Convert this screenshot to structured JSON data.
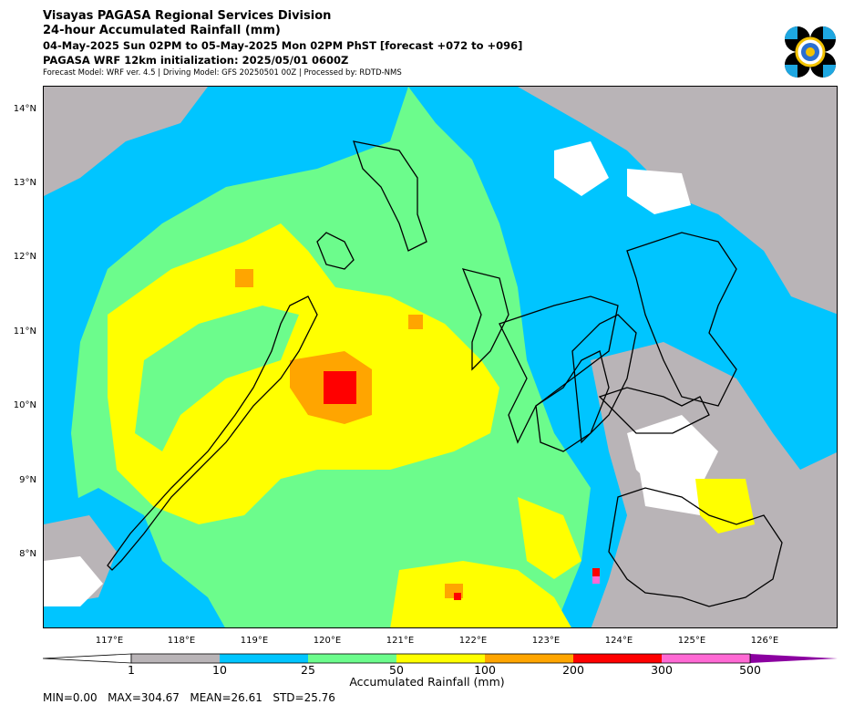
{
  "header": {
    "title": "Visayas PAGASA Regional Services Division",
    "subtitle": "24-hour Accumulated Rainfall (mm)",
    "period": "04-May-2025 Sun 02PM to 05-May-2025 Mon 02PM PhST [forecast +072 to +096]",
    "init": "PAGASA WRF 12km initialization: 2025/05/01 0600Z",
    "credits": "Forecast Model: WRF ver. 4.5 | Driving Model: GFS 20250501 00Z | Processed by: RDTD-NMS"
  },
  "logo": {
    "icon": "pagasa-logo-icon"
  },
  "map": {
    "lat_labels": [
      "14°N",
      "13°N",
      "12°N",
      "11°N",
      "10°N",
      "9°N",
      "8°N"
    ],
    "lon_labels": [
      "117°E",
      "118°E",
      "119°E",
      "120°E",
      "121°E",
      "122°E",
      "123°E",
      "124°E",
      "125°E",
      "126°E"
    ]
  },
  "colorbar": {
    "ticks": [
      "1",
      "10",
      "25",
      "50",
      "100",
      "200",
      "300",
      "500"
    ],
    "colors": [
      "#ffffff",
      "#b9b4b7",
      "#00c5ff",
      "#6cfc8c",
      "#ffff00",
      "#ffa500",
      "#ff0000",
      "#ff69d4",
      "#8b00a0"
    ],
    "title": "Accumulated Rainfall (mm)"
  },
  "stats": "MIN=0.00   MAX=304.67   MEAN=26.61   STD=25.76"
}
